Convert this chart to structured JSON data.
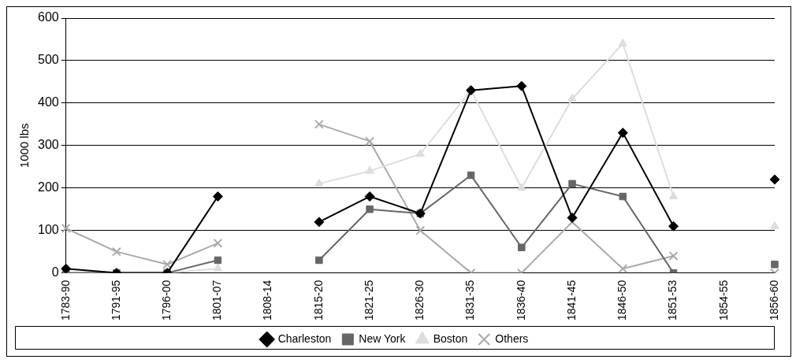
{
  "chart_data": {
    "type": "line",
    "ylabel": "1000 lbs",
    "categories": [
      "1783-90",
      "1791-95",
      "1796-00",
      "1801-07",
      "1808-14",
      "1815-20",
      "1821-25",
      "1826-30",
      "1831-35",
      "1836-40",
      "1841-45",
      "1846-50",
      "1851-53",
      "1854-55",
      "1856-60"
    ],
    "series": [
      {
        "name": "Charleston",
        "color": "#000000",
        "marker": "diamond",
        "values": [
          10,
          0,
          0,
          180,
          null,
          120,
          180,
          140,
          430,
          440,
          130,
          330,
          110,
          null,
          220
        ]
      },
      {
        "name": "New York",
        "color": "#666666",
        "marker": "square",
        "values": [
          0,
          0,
          0,
          30,
          null,
          30,
          150,
          140,
          230,
          60,
          210,
          180,
          0,
          null,
          20
        ]
      },
      {
        "name": "Boston",
        "color": "#dddddd",
        "marker": "triangle",
        "values": [
          0,
          0,
          0,
          10,
          null,
          210,
          240,
          280,
          430,
          200,
          410,
          540,
          180,
          null,
          110
        ]
      },
      {
        "name": "Others",
        "color": "#aaaaaa",
        "marker": "cross",
        "values": [
          105,
          50,
          20,
          70,
          null,
          350,
          310,
          100,
          0,
          0,
          120,
          10,
          40,
          null,
          0
        ]
      }
    ],
    "ylim": [
      0,
      600
    ],
    "yticks": [
      0,
      100,
      200,
      300,
      400,
      500,
      600
    ],
    "grid": "y",
    "legend": "bottom",
    "line_style": "solid"
  }
}
